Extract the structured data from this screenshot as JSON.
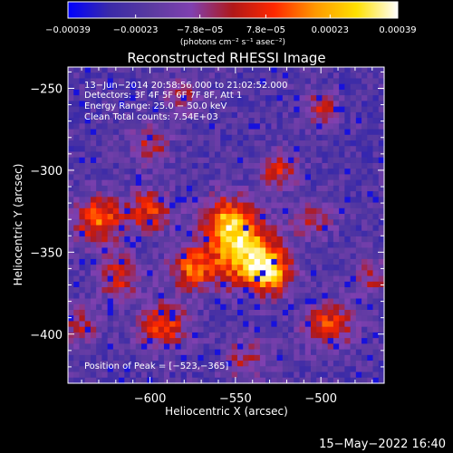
{
  "chart_data": {
    "type": "heatmap",
    "title": "Reconstructed RHESSI Image",
    "xlabel": "Heliocentric X (arcsec)",
    "ylabel": "Heliocentric Y (arcsec)",
    "xlim": [
      -648,
      -463
    ],
    "ylim": [
      -430,
      -237
    ],
    "x_ticks": [
      -600,
      -550,
      -500
    ],
    "x_tick_labels": [
      "−600",
      "−550",
      "−500"
    ],
    "y_ticks": [
      -250,
      -300,
      -350,
      -400
    ],
    "y_tick_labels": [
      "−250",
      "−300",
      "−350",
      "−400"
    ],
    "colorbar": {
      "range": [
        -0.00039,
        0.00039
      ],
      "tick_values": [
        -0.00039,
        -0.00023,
        -7.8e-05,
        7.8e-05,
        0.00023,
        0.00039
      ],
      "tick_labels": [
        "−0.00039",
        "−0.00023",
        "−7.8e−05",
        "7.8e−05",
        "0.00023",
        "0.00039"
      ],
      "unit_label": "(photons cm⁻² s⁻¹ asec⁻²)",
      "colormap": [
        "#0000ff",
        "#3a2aa8",
        "#5a3aa0",
        "#8040b0",
        "#b01818",
        "#ff2800",
        "#ff9800",
        "#ffe000",
        "#ffffff"
      ]
    },
    "annotations": [
      "13−Jun−2014 20:58:56.000 to 21:02:52.000",
      "Detectors: 3F 4F 5F 6F 7F 8F, Att 1",
      "Energy Range: 25.0 − 50.0 keV",
      "Clean    Total counts: 7.54E+03"
    ],
    "peak_label": "Position of Peak = [−523,−365]",
    "peak": {
      "x": -523,
      "y": -365
    },
    "blobs": [
      {
        "x": -545,
        "y": -350,
        "sigma": 14,
        "amp": 1.0
      },
      {
        "x": -555,
        "y": -330,
        "sigma": 10,
        "amp": 0.75
      },
      {
        "x": -575,
        "y": -360,
        "sigma": 9,
        "amp": 0.7
      },
      {
        "x": -530,
        "y": -362,
        "sigma": 9,
        "amp": 0.85
      },
      {
        "x": -630,
        "y": -330,
        "sigma": 10,
        "amp": 0.75
      },
      {
        "x": -600,
        "y": -325,
        "sigma": 9,
        "amp": 0.65
      },
      {
        "x": -592,
        "y": -395,
        "sigma": 10,
        "amp": 0.65
      },
      {
        "x": -618,
        "y": -365,
        "sigma": 9,
        "amp": 0.55
      },
      {
        "x": -495,
        "y": -395,
        "sigma": 10,
        "amp": 0.65
      },
      {
        "x": -525,
        "y": -300,
        "sigma": 8,
        "amp": 0.55
      },
      {
        "x": -505,
        "y": -330,
        "sigma": 8,
        "amp": 0.45
      },
      {
        "x": -500,
        "y": -262,
        "sigma": 7,
        "amp": 0.5
      },
      {
        "x": -600,
        "y": -285,
        "sigma": 8,
        "amp": 0.45
      },
      {
        "x": -470,
        "y": -365,
        "sigma": 8,
        "amp": 0.4
      },
      {
        "x": -545,
        "y": -415,
        "sigma": 9,
        "amp": 0.4
      },
      {
        "x": -640,
        "y": -395,
        "sigma": 8,
        "amp": 0.4
      },
      {
        "x": -580,
        "y": -255,
        "sigma": 8,
        "amp": 0.35
      }
    ]
  },
  "footer": {
    "timestamp": "15−May−2022 16:40"
  }
}
